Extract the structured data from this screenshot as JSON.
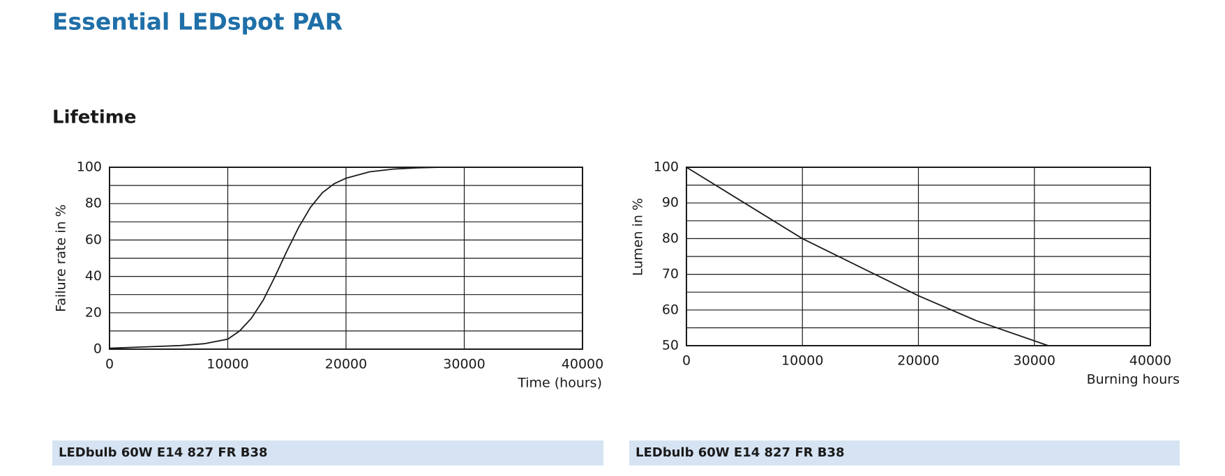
{
  "header": {
    "title": "Essential LEDspot PAR"
  },
  "section": {
    "title": "Lifetime"
  },
  "chart_data": [
    {
      "type": "line",
      "ylabel": "Failure rate in %",
      "xlabel": "Time (hours)",
      "x": [
        0,
        2000,
        4000,
        6000,
        8000,
        10000,
        11000,
        12000,
        13000,
        14000,
        15000,
        16000,
        17000,
        18000,
        19000,
        20000,
        22000,
        24000,
        26000,
        28000,
        40000
      ],
      "values": [
        0.5,
        1,
        1.5,
        2,
        3,
        5.5,
        10,
        17,
        27,
        40,
        54,
        67,
        78,
        86,
        91,
        94,
        97.5,
        99,
        99.7,
        100,
        100
      ],
      "color": "#1a1a1a",
      "xlim": [
        0,
        40000
      ],
      "xticks": [
        0,
        10000,
        20000,
        30000,
        40000
      ],
      "ylim": [
        0,
        100
      ],
      "yticks": [
        0,
        20,
        40,
        60,
        80,
        100
      ],
      "yminorticks": [
        10,
        30,
        50,
        70,
        90
      ],
      "grid": true,
      "caption": "LEDbulb 60W E14 827 FR B38"
    },
    {
      "type": "line",
      "ylabel": "Lumen in %",
      "xlabel": "Burning hours",
      "x": [
        0,
        5000,
        10000,
        15000,
        20000,
        25000,
        31200
      ],
      "values": [
        100,
        90,
        80,
        72,
        64,
        57,
        50
      ],
      "color": "#1a1a1a",
      "xlim": [
        0,
        40000
      ],
      "xticks": [
        0,
        10000,
        20000,
        30000,
        40000
      ],
      "ylim": [
        50,
        100
      ],
      "yticks": [
        50,
        60,
        70,
        80,
        90,
        100
      ],
      "yminorticks": [
        55,
        65,
        75,
        85,
        95
      ],
      "grid": true,
      "caption": "LEDbulb 60W E14 827 FR B38"
    }
  ]
}
